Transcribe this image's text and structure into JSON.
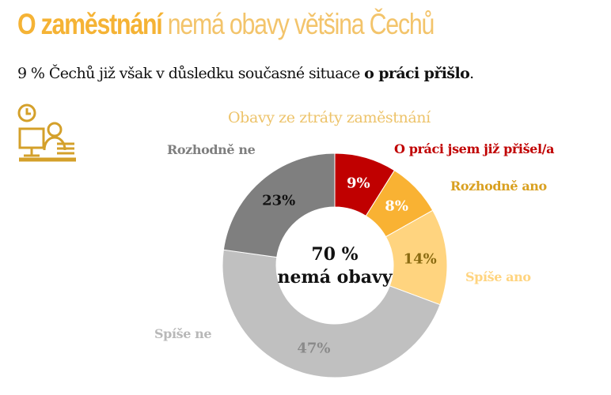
{
  "header": {
    "title_bold": "O zaměstnání",
    "title_rest": " nemá obavy většina Čechů",
    "subtitle_pre": "9 % Čechů již však v důsledku současné situace ",
    "subtitle_bold": "o práci přišlo",
    "subtitle_end": "."
  },
  "icon": "worker-at-desk-icon",
  "chart_data": {
    "type": "pie",
    "variant": "donut",
    "title": "Obavy ze ztráty zaměstnání",
    "center_label": [
      "70 %",
      "nemá obavy"
    ],
    "categories": [
      "O práci jsem již přišel/a",
      "Rozhodně ano",
      "Spíše ano",
      "Spíše ne",
      "Rozhodně ne"
    ],
    "values": [
      9,
      8,
      14,
      47,
      23
    ],
    "value_labels": [
      "9%",
      "8%",
      "14%",
      "47%",
      "23%"
    ],
    "colors": [
      "#c00000",
      "#f9b233",
      "#ffd47f",
      "#c0c0c0",
      "#7f7f7f"
    ],
    "label_colors": [
      "#c00000",
      "#d9a020",
      "#ffd47f",
      "#b8b8b8",
      "#7f7f7f"
    ]
  }
}
